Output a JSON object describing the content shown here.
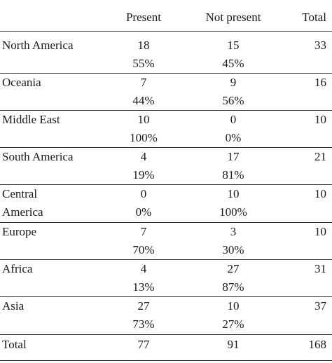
{
  "header": {
    "country": "",
    "present": "Present",
    "not_present": "Not present",
    "total": "Total"
  },
  "rows": [
    {
      "region": "North America",
      "present": "18",
      "present_pct": "55%",
      "not_present": "15",
      "not_present_pct": "45%",
      "total": "33"
    },
    {
      "region": "Oceania",
      "present": "7",
      "present_pct": "44%",
      "not_present": "9",
      "not_present_pct": "56%",
      "total": "16"
    },
    {
      "region": "Middle East",
      "present": "10",
      "present_pct": "100%",
      "not_present": "0",
      "not_present_pct": "0%",
      "total": "10"
    },
    {
      "region": "South America",
      "present": "4",
      "present_pct": "19%",
      "not_present": "17",
      "not_present_pct": "81%",
      "total": "21"
    },
    {
      "region": "Central",
      "region_line2": "America",
      "present": "0",
      "present_pct": "0%",
      "not_present": "10",
      "not_present_pct": "100%",
      "total": "10"
    },
    {
      "region": "Europe",
      "present": "7",
      "present_pct": "70%",
      "not_present": "3",
      "not_present_pct": "30%",
      "total": "10"
    },
    {
      "region": "Africa",
      "present": "4",
      "present_pct": "13%",
      "not_present": "27",
      "not_present_pct": "87%",
      "total": "31"
    },
    {
      "region": "Asia",
      "present": "27",
      "present_pct": "73%",
      "not_present": "10",
      "not_present_pct": "27%",
      "total": "37"
    }
  ],
  "totals": {
    "label": "Total",
    "present": "77",
    "not_present": "91",
    "total": "168"
  }
}
